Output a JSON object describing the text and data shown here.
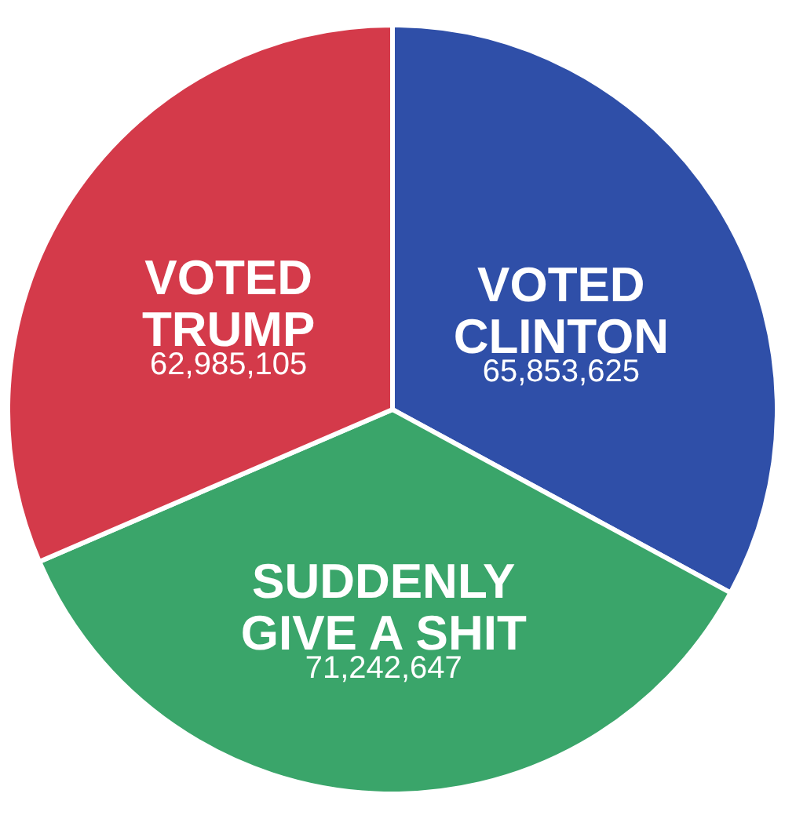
{
  "chart_data": {
    "type": "pie",
    "categories": [
      "VOTED CLINTON",
      "SUDDENLY GIVE A SHIT",
      "VOTED TRUMP"
    ],
    "values": [
      65853625,
      71242647,
      62985105
    ],
    "colors": [
      "#2f4fa8",
      "#3aa56a",
      "#d43a4a"
    ],
    "value_labels": [
      "65,853,625",
      "71,242,647",
      "62,985,105"
    ]
  }
}
